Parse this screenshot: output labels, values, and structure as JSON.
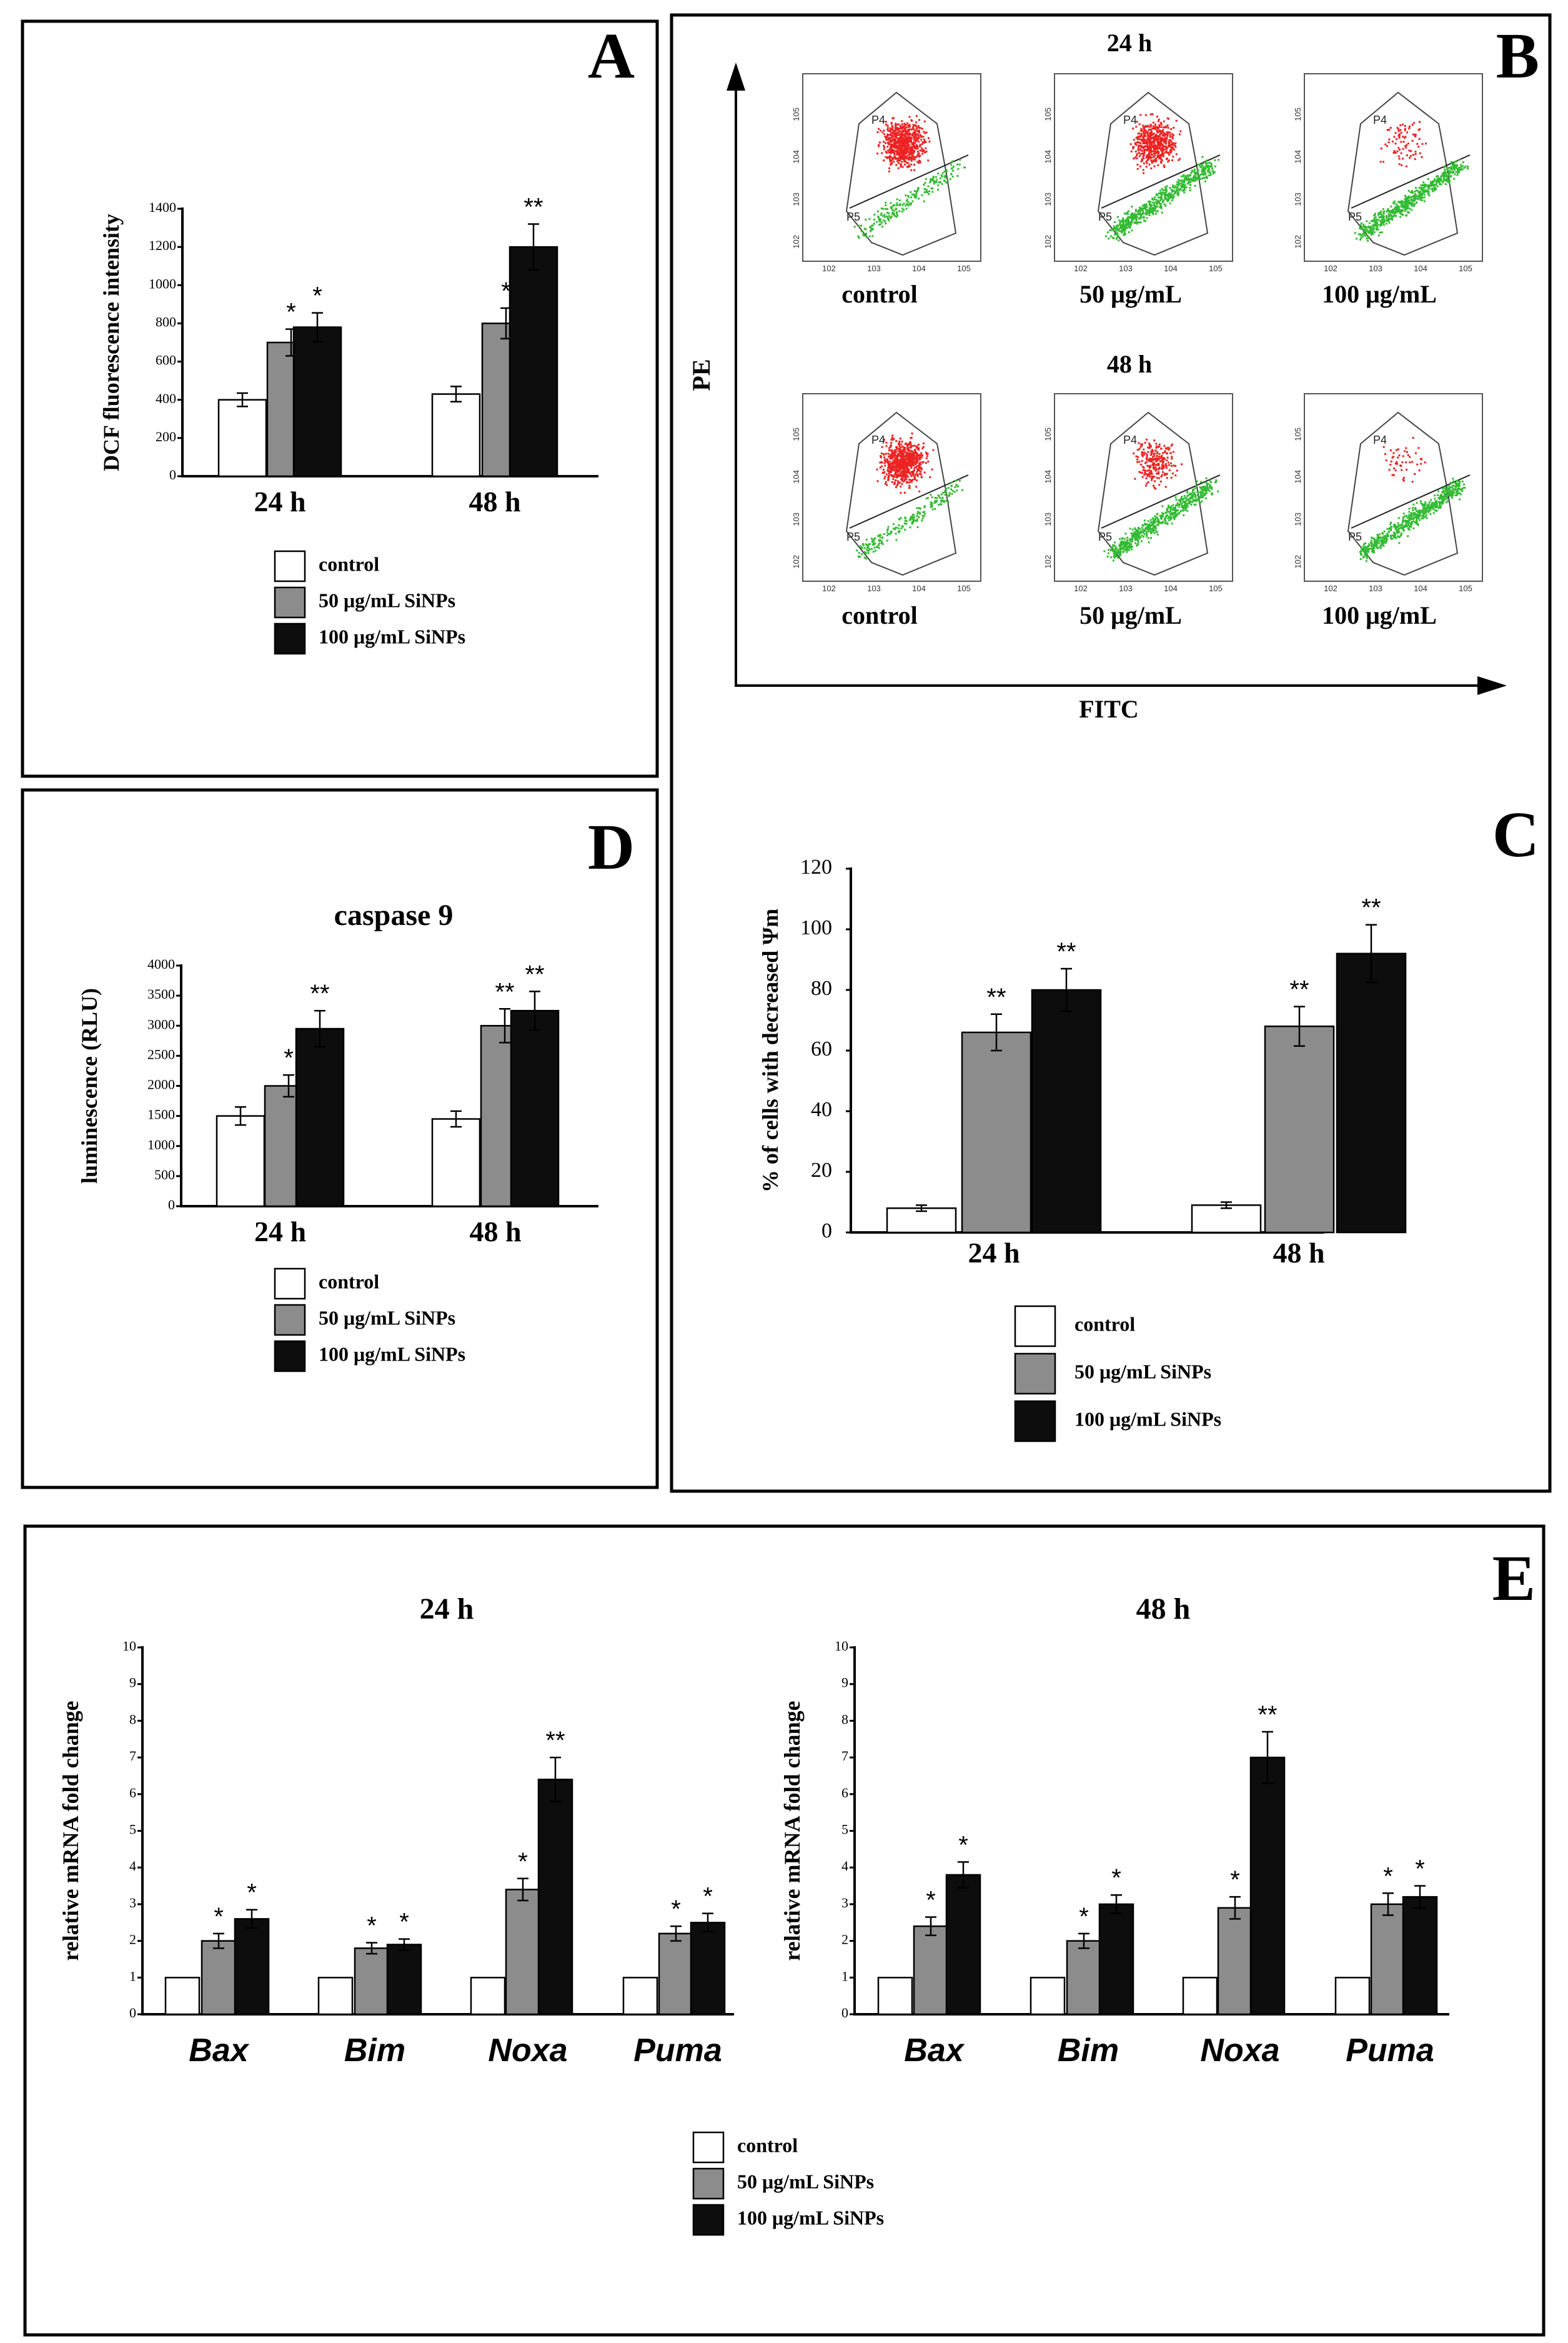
{
  "colors": {
    "control": "#ffffff",
    "c50": "#8c8c8c",
    "c100": "#0d0d0d",
    "p4_dots": "#ee2222",
    "p5_dots": "#33bb33"
  },
  "legend": {
    "control": "control",
    "c50": "50 μg/mL SiNPs",
    "c100": "100 μg/mL SiNPs"
  },
  "panels": {
    "A": {
      "letter": "A"
    },
    "B": {
      "letter": "B",
      "row_titles": [
        "24 h",
        "48 h"
      ],
      "col_labels": [
        "control",
        "50 μg/mL",
        "100 μg/mL"
      ],
      "y_axis": "PE",
      "x_axis": "FITC",
      "gates": [
        "P4",
        "P5"
      ],
      "axis_ticks": [
        "10^2",
        "10^3",
        "10^4",
        "10^5"
      ]
    },
    "C": {
      "letter": "C"
    },
    "D": {
      "letter": "D"
    },
    "E": {
      "letter": "E"
    }
  },
  "chart_data": [
    {
      "id": "A",
      "type": "bar",
      "title": "",
      "ylabel": "DCF fluorescence intensity",
      "ylim": [
        0,
        1400
      ],
      "yticks": [
        0,
        200,
        400,
        600,
        800,
        1000,
        1200,
        1400
      ],
      "categories": [
        "24 h",
        "48 h"
      ],
      "series": [
        {
          "name": "control",
          "values": [
            400,
            430
          ],
          "errors": [
            35,
            40
          ],
          "sig": [
            "",
            ""
          ]
        },
        {
          "name": "50 μg/mL SiNPs",
          "values": [
            700,
            800
          ],
          "errors": [
            70,
            80
          ],
          "sig": [
            "*",
            "*"
          ]
        },
        {
          "name": "100 μg/mL SiNPs",
          "values": [
            780,
            1200
          ],
          "errors": [
            75,
            120
          ],
          "sig": [
            "*",
            "**"
          ]
        }
      ]
    },
    {
      "id": "C",
      "type": "bar",
      "title": "",
      "ylabel": "% of  cells with decreased  Ψm",
      "ylim": [
        0,
        120
      ],
      "yticks": [
        0,
        20,
        40,
        60,
        80,
        100,
        120
      ],
      "categories": [
        "24 h",
        "48 h"
      ],
      "series": [
        {
          "name": "control",
          "values": [
            8,
            9
          ],
          "errors": [
            1,
            1
          ],
          "sig": [
            "",
            ""
          ]
        },
        {
          "name": "50 μg/mL SiNPs",
          "values": [
            66,
            68
          ],
          "errors": [
            6,
            6.5
          ],
          "sig": [
            "**",
            "**"
          ]
        },
        {
          "name": "100 μg/mL SiNPs",
          "values": [
            80,
            92
          ],
          "errors": [
            7,
            9.5
          ],
          "sig": [
            "**",
            "**"
          ]
        }
      ]
    },
    {
      "id": "D",
      "type": "bar",
      "title": "caspase 9",
      "ylabel": "luminescence (RLU)",
      "ylim": [
        0,
        4000
      ],
      "yticks": [
        0,
        500,
        1000,
        1500,
        2000,
        2500,
        3000,
        3500,
        4000
      ],
      "categories": [
        "24 h",
        "48 h"
      ],
      "series": [
        {
          "name": "control",
          "values": [
            1500,
            1450
          ],
          "errors": [
            150,
            130
          ],
          "sig": [
            "",
            ""
          ]
        },
        {
          "name": "50 μg/mL SiNPs",
          "values": [
            2000,
            3000
          ],
          "errors": [
            180,
            280
          ],
          "sig": [
            "*",
            "**"
          ]
        },
        {
          "name": "100 μg/mL SiNPs",
          "values": [
            2950,
            3250
          ],
          "errors": [
            300,
            320
          ],
          "sig": [
            "**",
            "**"
          ]
        }
      ]
    },
    {
      "id": "E24",
      "type": "bar",
      "title": "24 h",
      "ylabel": "relative mRNA fold change",
      "ylim": [
        0,
        10
      ],
      "yticks": [
        0,
        1,
        2,
        3,
        4,
        5,
        6,
        7,
        8,
        9,
        10
      ],
      "categories": [
        "Bax",
        "Bim",
        "Noxa",
        "Puma"
      ],
      "series": [
        {
          "name": "control",
          "values": [
            1,
            1,
            1,
            1
          ],
          "errors": [
            0,
            0,
            0,
            0
          ],
          "sig": [
            "",
            "",
            "",
            ""
          ]
        },
        {
          "name": "50 μg/mL SiNPs",
          "values": [
            2.0,
            1.8,
            3.4,
            2.2
          ],
          "errors": [
            0.2,
            0.15,
            0.3,
            0.2
          ],
          "sig": [
            "*",
            "*",
            "*",
            "*"
          ]
        },
        {
          "name": "100 μg/mL SiNPs",
          "values": [
            2.6,
            1.9,
            6.4,
            2.5
          ],
          "errors": [
            0.25,
            0.15,
            0.6,
            0.25
          ],
          "sig": [
            "*",
            "*",
            "**",
            "*"
          ]
        }
      ]
    },
    {
      "id": "E48",
      "type": "bar",
      "title": "48 h",
      "ylabel": "relative mRNA fold change",
      "ylim": [
        0,
        10
      ],
      "yticks": [
        0,
        1,
        2,
        3,
        4,
        5,
        6,
        7,
        8,
        9,
        10
      ],
      "categories": [
        "Bax",
        "Bim",
        "Noxa",
        "Puma"
      ],
      "series": [
        {
          "name": "control",
          "values": [
            1,
            1,
            1,
            1
          ],
          "errors": [
            0,
            0,
            0,
            0
          ],
          "sig": [
            "",
            "",
            "",
            ""
          ]
        },
        {
          "name": "50 μg/mL SiNPs",
          "values": [
            2.4,
            2.0,
            2.9,
            3.0
          ],
          "errors": [
            0.25,
            0.2,
            0.3,
            0.3
          ],
          "sig": [
            "*",
            "*",
            "*",
            "*"
          ]
        },
        {
          "name": "100 μg/mL SiNPs",
          "values": [
            3.8,
            3.0,
            7.0,
            3.2
          ],
          "errors": [
            0.35,
            0.25,
            0.7,
            0.3
          ],
          "sig": [
            "*",
            "*",
            "**",
            "*"
          ]
        }
      ]
    }
  ]
}
